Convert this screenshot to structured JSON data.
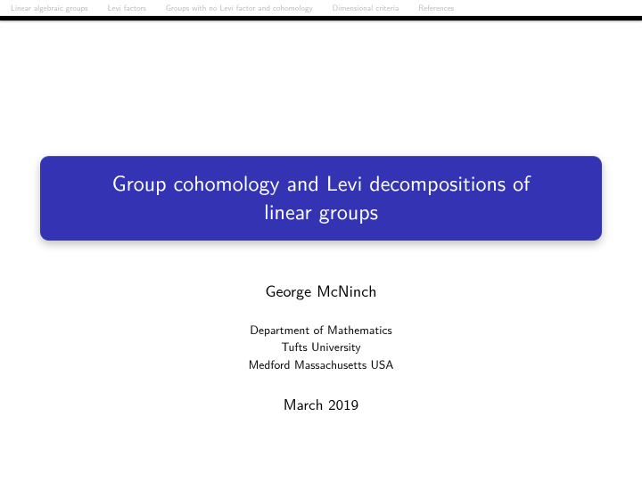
{
  "nav": {
    "items": [
      "Linear algebraic groups",
      "Levi factors",
      "Groups with no Levi factor and cohomology",
      "Dimensional criteria",
      "References"
    ]
  },
  "title": {
    "line1": "Group cohomology and Levi decompositions of",
    "line2": "linear groups"
  },
  "author": "George McNinch",
  "affiliation": {
    "dept": "Department of Mathematics",
    "univ": "Tufts University",
    "loc": "Medford Massachusetts USA"
  },
  "date": "March 2019",
  "style": {
    "title_bg": "#3333b3",
    "title_color": "#ffffff",
    "nav_color": "#b8b8c0",
    "topline_color": "#000000",
    "page_bg": "#ffffff",
    "title_fontsize": 24,
    "author_fontsize": 18,
    "affil_fontsize": 13.5,
    "date_fontsize": 17,
    "title_radius": 10
  }
}
